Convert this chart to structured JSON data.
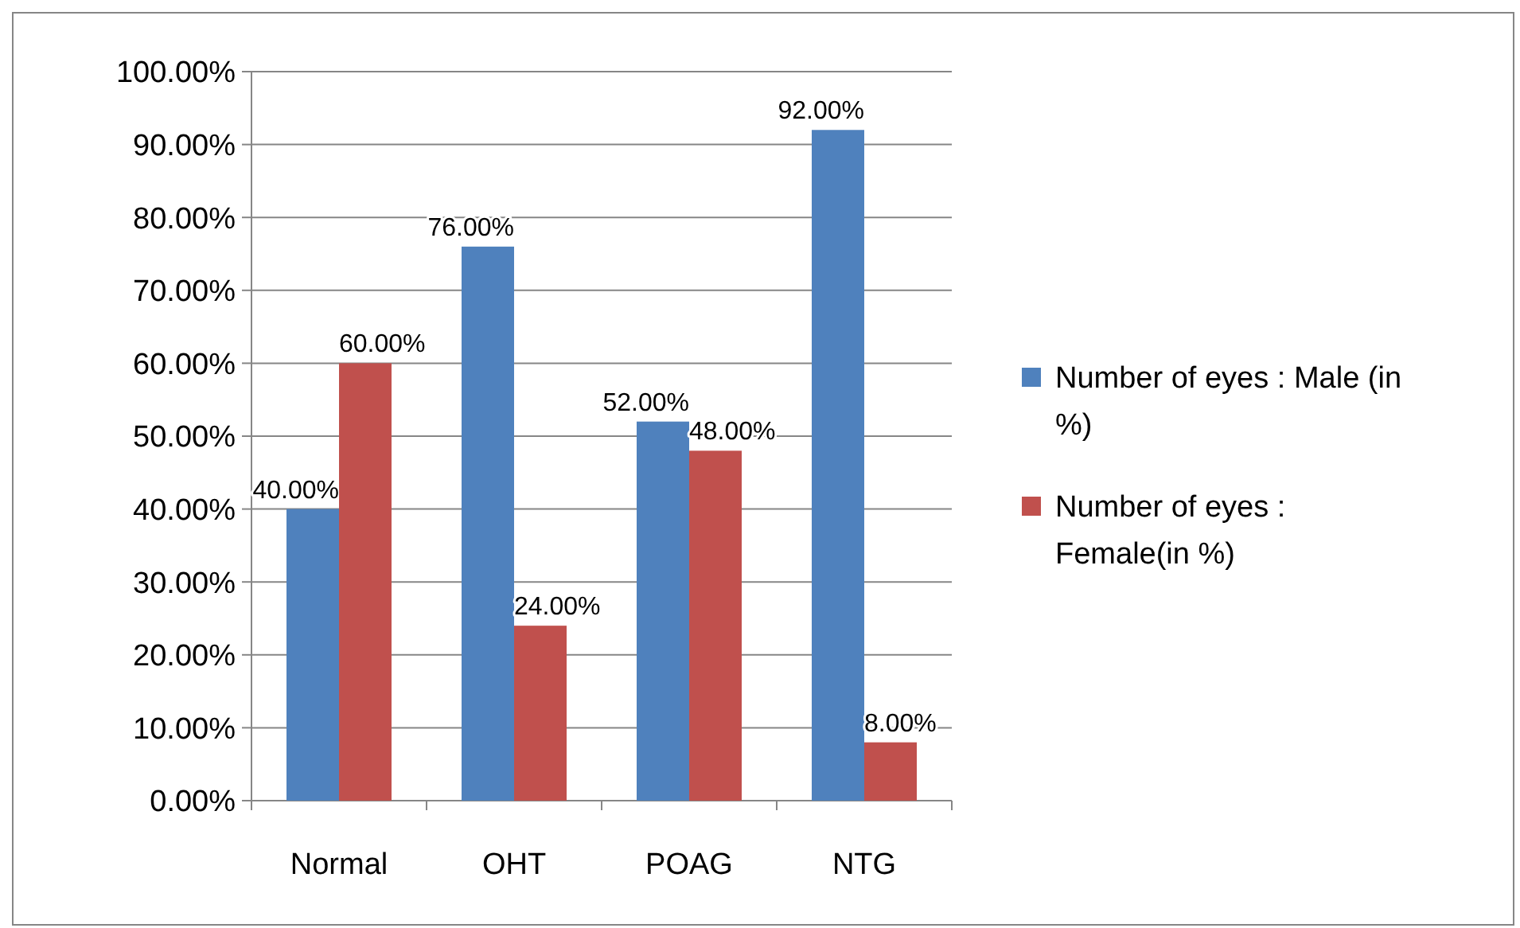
{
  "chart_data": {
    "type": "bar",
    "categories": [
      "Normal",
      "OHT",
      "POAG",
      "NTG"
    ],
    "series": [
      {
        "name": "Number of eyes : Male (in %)",
        "color": "#4f81bd",
        "values": [
          40,
          76,
          52,
          92
        ],
        "value_labels": [
          "40.00%",
          "76.00%",
          "52.00%",
          "92.00%"
        ]
      },
      {
        "name": "Number of eyes : Female(in %)",
        "color": "#c0504d",
        "values": [
          60,
          24,
          48,
          8
        ],
        "value_labels": [
          "60.00%",
          "24.00%",
          "48.00%",
          "8.00%"
        ]
      }
    ],
    "ylim": [
      0,
      100
    ],
    "yticks": [
      {
        "value": 0,
        "label": "0.00%"
      },
      {
        "value": 10,
        "label": "10.00%"
      },
      {
        "value": 20,
        "label": "20.00%"
      },
      {
        "value": 30,
        "label": "30.00%"
      },
      {
        "value": 40,
        "label": "40.00%"
      },
      {
        "value": 50,
        "label": "50.00%"
      },
      {
        "value": 60,
        "label": "60.00%"
      },
      {
        "value": 70,
        "label": "70.00%"
      },
      {
        "value": 80,
        "label": "80.00%"
      },
      {
        "value": 90,
        "label": "90.00%"
      },
      {
        "value": 100,
        "label": "100.00%"
      }
    ],
    "grid": "y",
    "legend": "right"
  }
}
